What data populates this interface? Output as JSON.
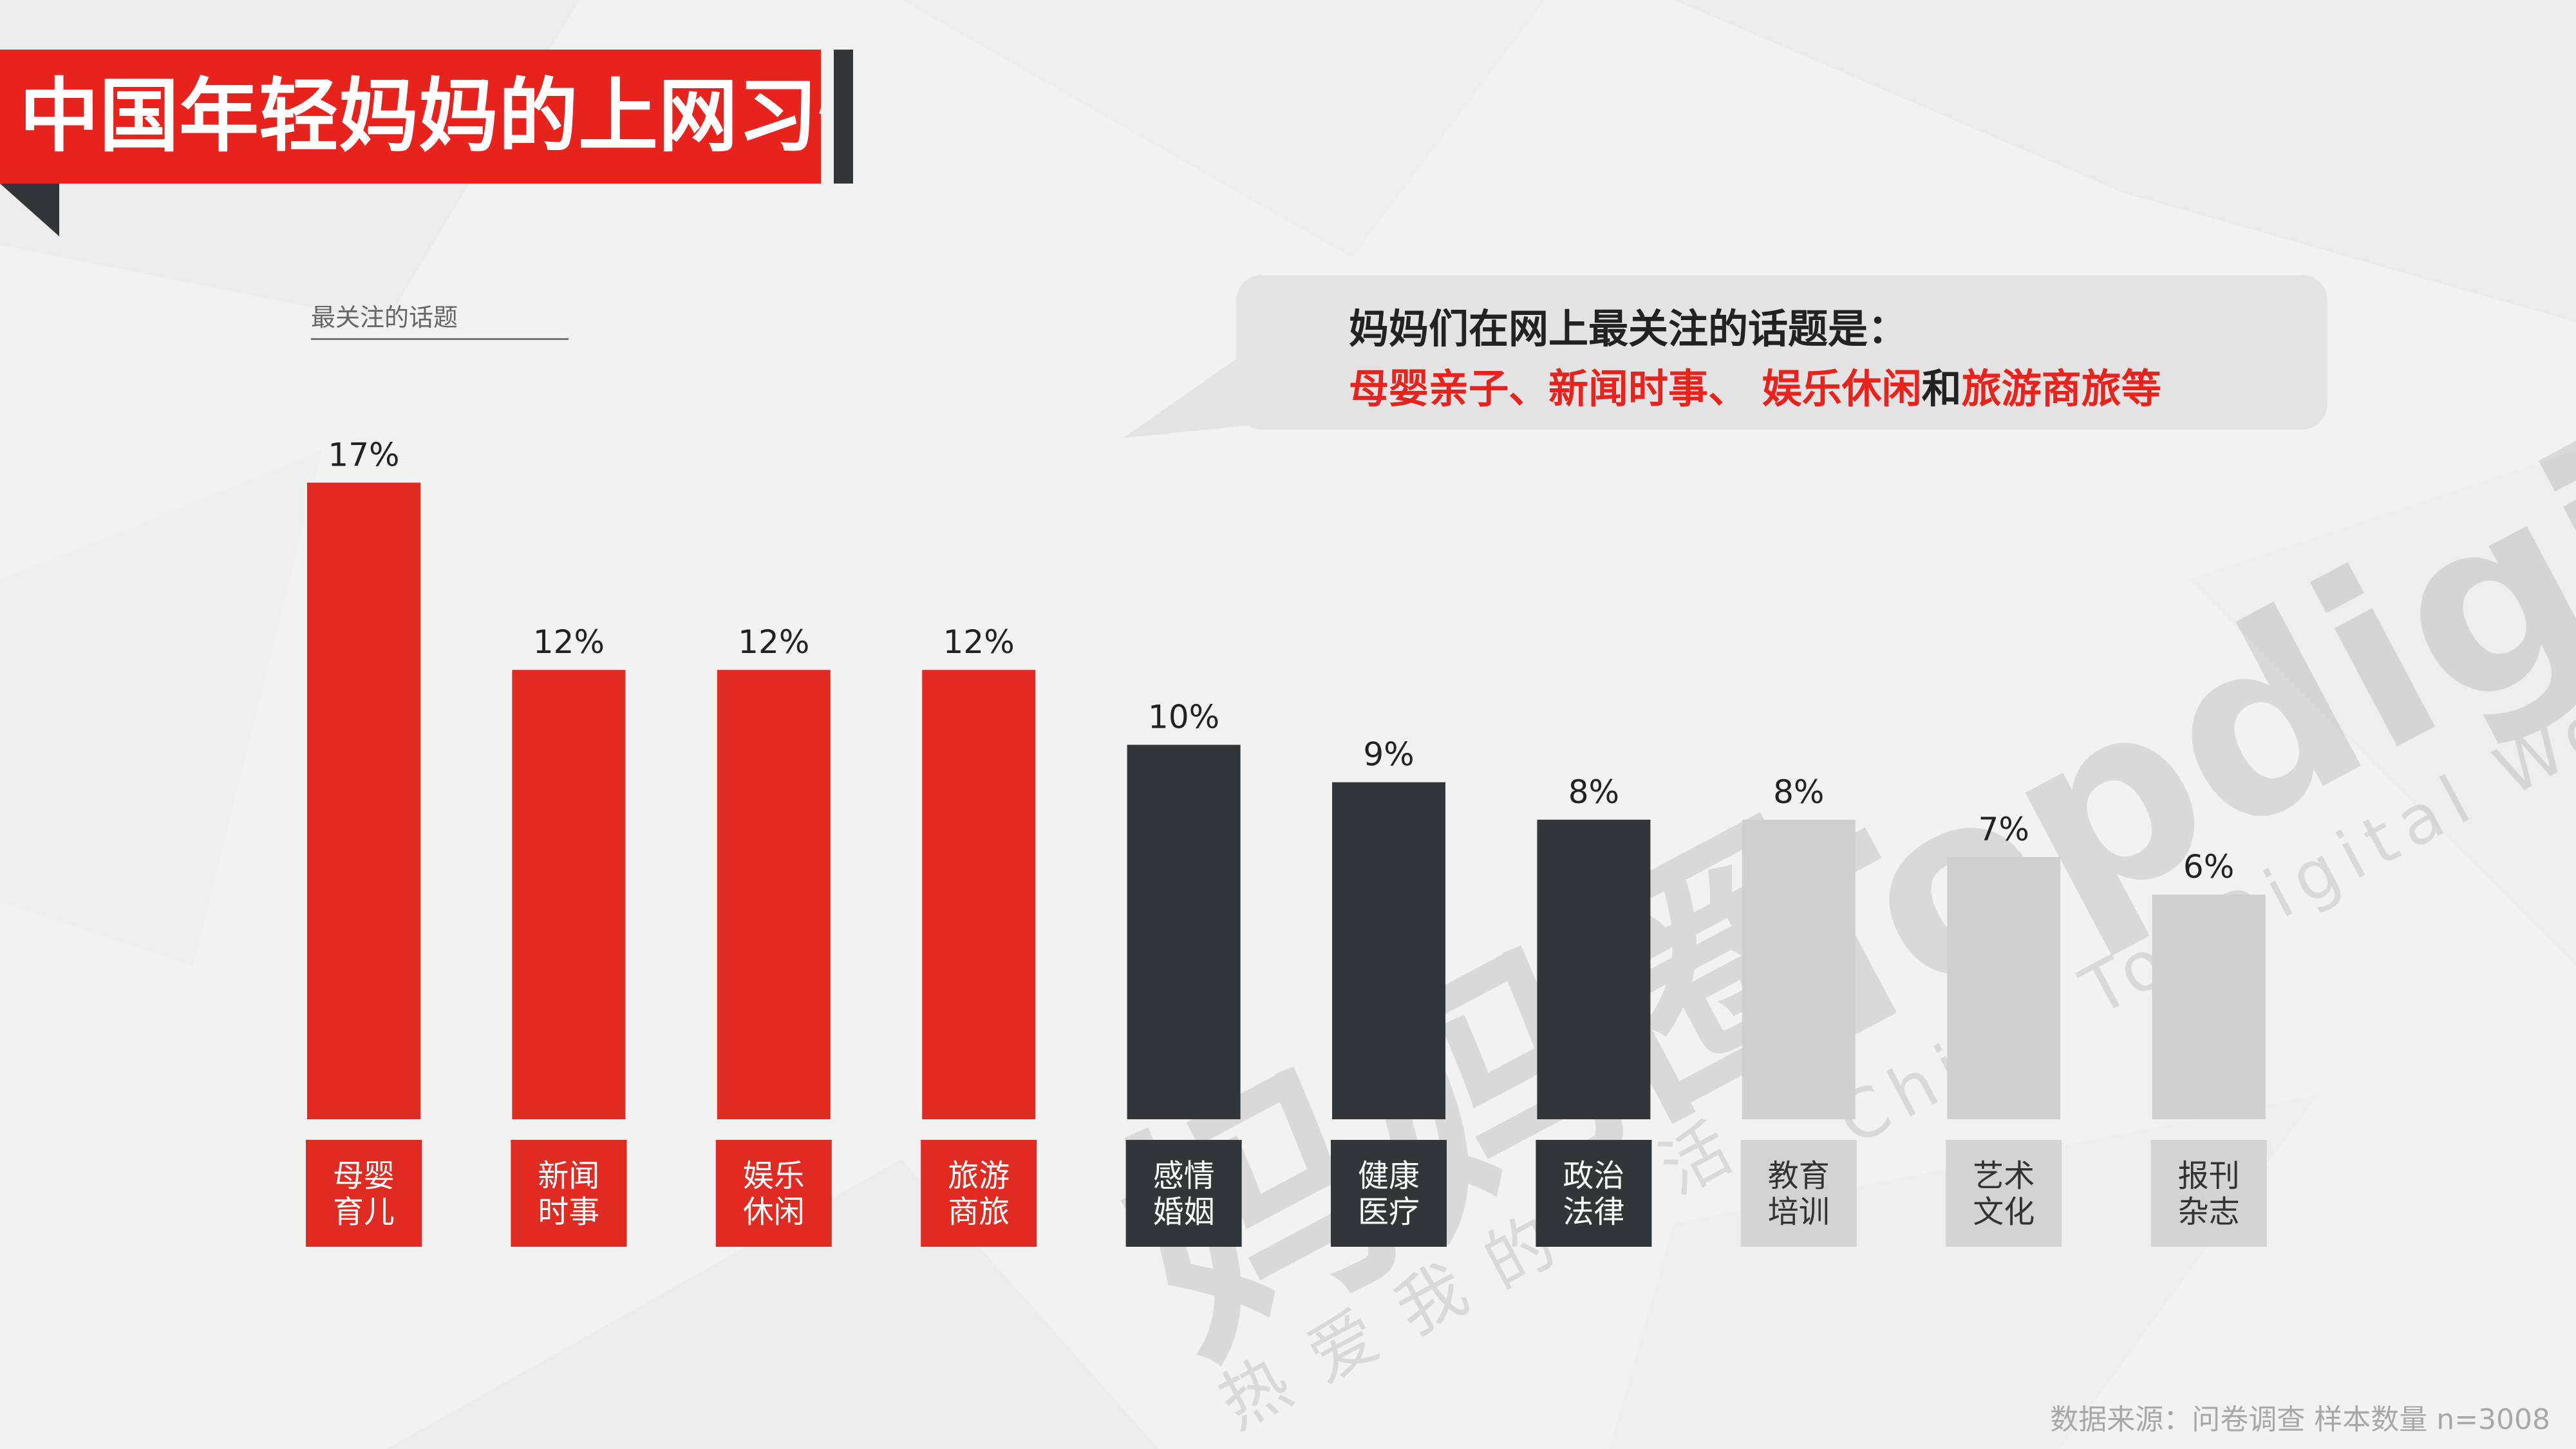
{
  "title": "中国年轻妈妈的上网习惯",
  "subtitle": "最关注的话题",
  "callout": {
    "line1": "妈妈们在网上最关注的话题是：",
    "line2_parts": [
      {
        "text": "母婴亲子、新闻时事、 娱乐休闲",
        "color": "red"
      },
      {
        "text": "和",
        "color": "dark"
      },
      {
        "text": "旅游商旅等",
        "color": "red"
      }
    ]
  },
  "watermark": {
    "brand": "Topdigital",
    "tagline": "China TopDigital World",
    "logo_text": "妈妈圈",
    "slogan": "热爱我的生活"
  },
  "source": "数据来源：问卷调查 样本数量 n=3008",
  "colors": {
    "red": "#e02a22",
    "dark": "#333639",
    "gray": "#cfcfcf",
    "label_text_gray": "#333333"
  },
  "chart_data": {
    "type": "bar",
    "title": "最关注的话题",
    "unit": "%",
    "categories": [
      "母婴\n育儿",
      "新闻\n时事",
      "娱乐\n休闲",
      "旅游\n商旅",
      "感情\n婚姻",
      "健康\n医疗",
      "政治\n法律",
      "教育\n培训",
      "艺术\n文化",
      "报刊\n杂志"
    ],
    "values": [
      17,
      12,
      12,
      12,
      10,
      9,
      8,
      8,
      7,
      6
    ],
    "data_labels": [
      "17%",
      "12%",
      "12%",
      "12%",
      "10%",
      "9%",
      "8%",
      "8%",
      "7%",
      "6%"
    ],
    "bar_color_groups": [
      "red",
      "red",
      "red",
      "red",
      "dark",
      "dark",
      "dark",
      "gray",
      "gray",
      "gray"
    ],
    "grid": false,
    "legend": "none"
  }
}
